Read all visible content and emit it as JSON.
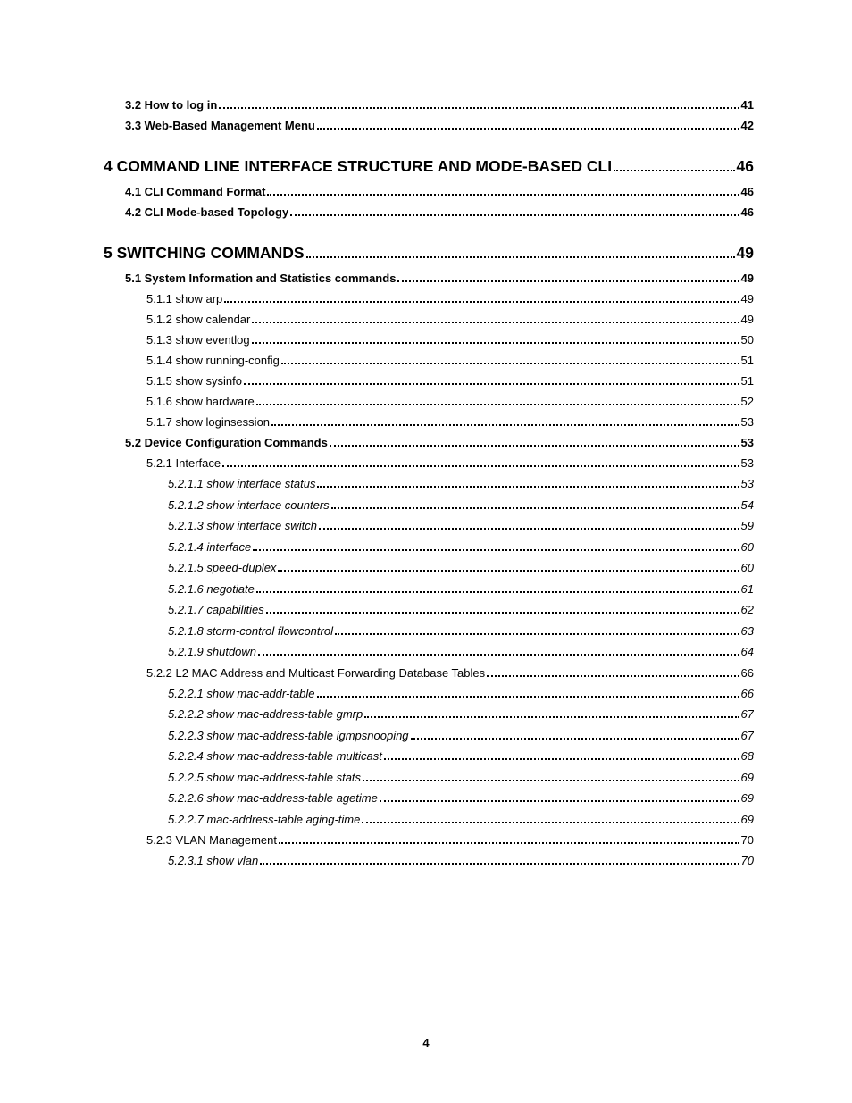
{
  "toc": {
    "entries": [
      {
        "level": "h2",
        "title": "3.2 How to log in",
        "page": "41"
      },
      {
        "level": "h2",
        "title": "3.3 Web-Based Management Menu",
        "page": "42"
      },
      {
        "level": "h1",
        "title": "4 COMMAND LINE INTERFACE STRUCTURE AND MODE-BASED CLI",
        "page": "46"
      },
      {
        "level": "h2",
        "title": "4.1 CLI Command Format",
        "page": "46"
      },
      {
        "level": "h2",
        "title": "4.2 CLI Mode-based Topology",
        "page": "46"
      },
      {
        "level": "h1",
        "title": "5 SWITCHING COMMANDS",
        "page": "49"
      },
      {
        "level": "h2",
        "title": "5.1 System Information and Statistics commands",
        "page": "49"
      },
      {
        "level": "h3",
        "title": "5.1.1 show arp",
        "page": "49"
      },
      {
        "level": "h3",
        "title": "5.1.2 show calendar",
        "page": "49"
      },
      {
        "level": "h3",
        "title": "5.1.3 show eventlog",
        "page": "50"
      },
      {
        "level": "h3",
        "title": "5.1.4 show running-config",
        "page": "51"
      },
      {
        "level": "h3",
        "title": "5.1.5 show sysinfo",
        "page": "51"
      },
      {
        "level": "h3",
        "title": "5.1.6 show hardware",
        "page": "52"
      },
      {
        "level": "h3",
        "title": "5.1.7 show loginsession",
        "page": "53"
      },
      {
        "level": "h2",
        "title": "5.2 Device Configuration Commands",
        "page": "53"
      },
      {
        "level": "h3",
        "title": "5.2.1 Interface",
        "page": "53"
      },
      {
        "level": "h4",
        "title": "5.2.1.1 show interface status",
        "page": "53"
      },
      {
        "level": "h4",
        "title": "5.2.1.2 show interface counters",
        "page": "54"
      },
      {
        "level": "h4",
        "title": "5.2.1.3 show interface switch",
        "page": "59"
      },
      {
        "level": "h4",
        "title": "5.2.1.4 interface",
        "page": "60"
      },
      {
        "level": "h4",
        "title": "5.2.1.5 speed-duplex",
        "page": "60"
      },
      {
        "level": "h4",
        "title": "5.2.1.6 negotiate",
        "page": "61"
      },
      {
        "level": "h4",
        "title": "5.2.1.7 capabilities",
        "page": "62"
      },
      {
        "level": "h4",
        "title": "5.2.1.8 storm-control flowcontrol",
        "page": "63"
      },
      {
        "level": "h4",
        "title": "5.2.1.9 shutdown",
        "page": "64"
      },
      {
        "level": "h3",
        "title": "5.2.2 L2 MAC Address and Multicast Forwarding Database Tables",
        "page": "66"
      },
      {
        "level": "h4",
        "title": "5.2.2.1 show mac-addr-table",
        "page": "66"
      },
      {
        "level": "h4",
        "title": "5.2.2.2 show mac-address-table gmrp",
        "page": "67"
      },
      {
        "level": "h4",
        "title": "5.2.2.3 show mac-address-table igmpsnooping",
        "page": "67"
      },
      {
        "level": "h4",
        "title": "5.2.2.4 show mac-address-table multicast",
        "page": "68"
      },
      {
        "level": "h4",
        "title": "5.2.2.5 show mac-address-table stats",
        "page": "69"
      },
      {
        "level": "h4",
        "title": "5.2.2.6 show mac-address-table agetime",
        "page": "69"
      },
      {
        "level": "h4",
        "title": "5.2.2.7 mac-address-table aging-time",
        "page": "69"
      },
      {
        "level": "h3",
        "title": "5.2.3 VLAN Management",
        "page": "70"
      },
      {
        "level": "h4",
        "title": "5.2.3.1 show vlan",
        "page": "70"
      }
    ]
  },
  "pageNumber": "4"
}
